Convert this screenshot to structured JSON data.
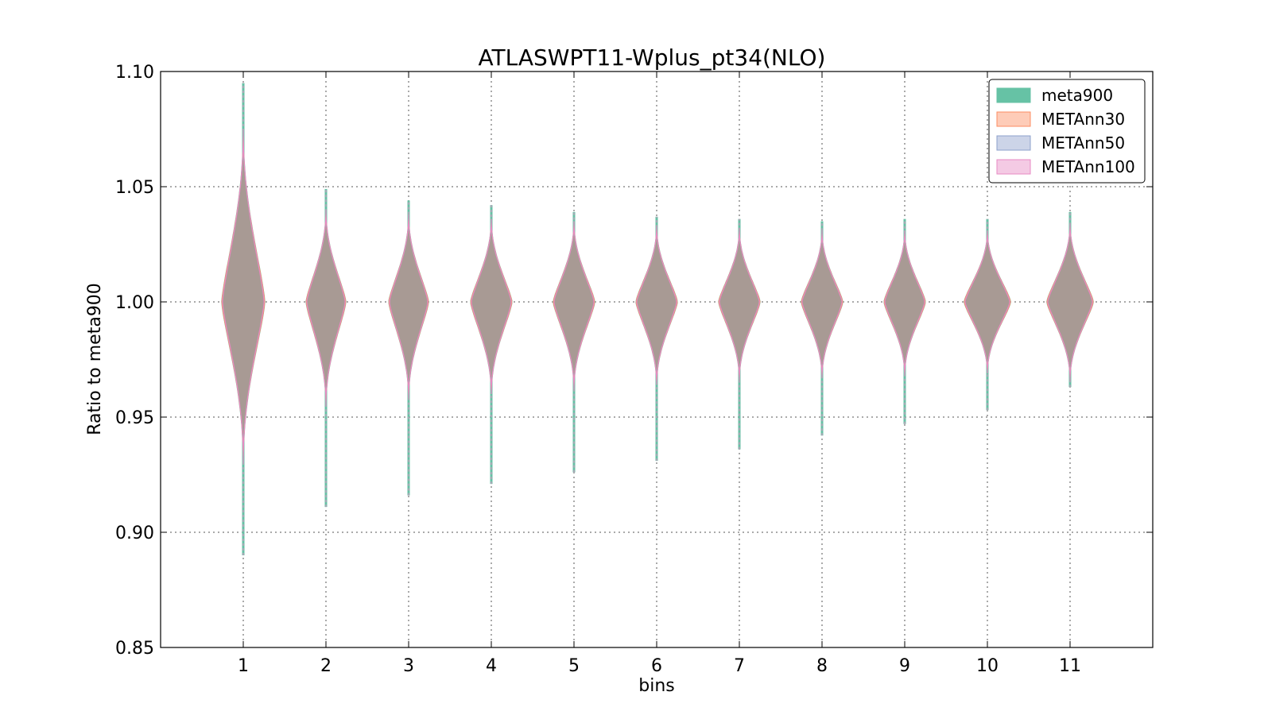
{
  "chart_data": {
    "type": "violin",
    "title": "ATLASWPT11-Wplus_pt34(NLO)",
    "xlabel": "bins",
    "ylabel": "Ratio to meta900",
    "categories": [
      "1",
      "2",
      "3",
      "4",
      "5",
      "6",
      "7",
      "8",
      "9",
      "10",
      "11"
    ],
    "ylim": [
      0.85,
      1.1
    ],
    "yticks": [
      "0.85",
      "0.90",
      "0.95",
      "1.00",
      "1.05",
      "1.10"
    ],
    "grid": true,
    "legend_position": "top-right",
    "series": [
      {
        "name": "meta900",
        "fill": "#66c2a5",
        "stroke": "#66c2a5",
        "center": [
          1.0,
          1.0,
          1.0,
          1.0,
          1.0,
          1.0,
          1.0,
          1.0,
          1.0,
          1.0,
          1.0
        ],
        "min": [
          0.89,
          0.911,
          0.916,
          0.921,
          0.926,
          0.931,
          0.936,
          0.942,
          0.947,
          0.953,
          0.963
        ],
        "max": [
          1.095,
          1.049,
          1.044,
          1.042,
          1.039,
          1.037,
          1.036,
          1.035,
          1.036,
          1.036,
          1.039
        ],
        "body_lo": [
          0.93,
          0.955,
          0.958,
          0.96,
          0.962,
          0.964,
          0.966,
          0.967,
          0.968,
          0.969,
          0.966
        ],
        "body_hi": [
          1.075,
          1.04,
          1.038,
          1.036,
          1.035,
          1.033,
          1.032,
          1.031,
          1.031,
          1.031,
          1.034
        ],
        "halfwidth": [
          0.26,
          0.24,
          0.24,
          0.25,
          0.25,
          0.25,
          0.25,
          0.25,
          0.25,
          0.28,
          0.28
        ]
      },
      {
        "name": "METAnn30",
        "fill": "#fc8d62",
        "stroke": "#fc8d62"
      },
      {
        "name": "METAnn50",
        "fill": "#8da0cb",
        "stroke": "#8da0cb"
      },
      {
        "name": "METAnn100",
        "fill": "#e78ac3",
        "stroke": "#e78ac3"
      }
    ],
    "body_fill": "#a89a94"
  }
}
